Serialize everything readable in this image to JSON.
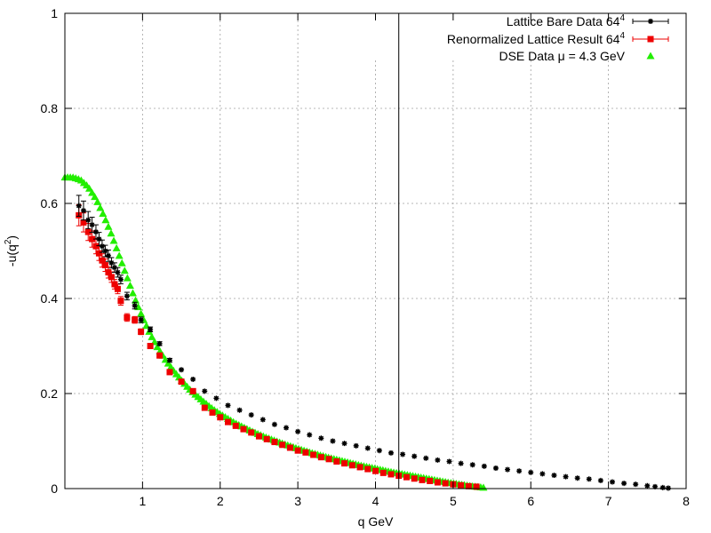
{
  "chart_data": {
    "type": "scatter",
    "title": "",
    "xlabel": "q GeV",
    "ylabel_main": "-u(q",
    "ylabel_sup": "2",
    "ylabel_end": ")",
    "xlim": [
      0,
      8
    ],
    "ylim": [
      0,
      1
    ],
    "x_ticks": [
      1,
      2,
      3,
      4,
      5,
      6,
      7,
      8
    ],
    "x_tick_labels": [
      "1",
      "2",
      "3",
      "4",
      "5",
      "6",
      "7",
      "8"
    ],
    "y_ticks": [
      0,
      0.2,
      0.4,
      0.6,
      0.8,
      1
    ],
    "y_tick_labels": [
      "0",
      "0.2",
      "0.4",
      "0.6",
      "0.8",
      "1"
    ],
    "grid": true,
    "legend_position": "top-right",
    "vertical_line_x": 4.3,
    "series": [
      {
        "name": "Lattice Bare Data 64",
        "name_sup": "4",
        "color": "#000000",
        "marker": "star",
        "x": [
          0.18,
          0.24,
          0.3,
          0.35,
          0.4,
          0.44,
          0.48,
          0.52,
          0.56,
          0.6,
          0.64,
          0.68,
          0.72,
          0.8,
          0.9,
          0.98,
          1.1,
          1.22,
          1.35,
          1.5,
          1.65,
          1.8,
          1.95,
          2.1,
          2.25,
          2.4,
          2.55,
          2.7,
          2.85,
          3.0,
          3.15,
          3.3,
          3.45,
          3.6,
          3.75,
          3.9,
          4.05,
          4.2,
          4.35,
          4.5,
          4.65,
          4.8,
          4.95,
          5.1,
          5.25,
          5.4,
          5.55,
          5.7,
          5.85,
          6.0,
          6.15,
          6.3,
          6.45,
          6.6,
          6.75,
          6.9,
          7.05,
          7.2,
          7.35,
          7.5,
          7.6,
          7.7,
          7.77
        ],
        "y": [
          0.595,
          0.585,
          0.565,
          0.555,
          0.54,
          0.525,
          0.51,
          0.5,
          0.49,
          0.475,
          0.465,
          0.455,
          0.44,
          0.405,
          0.385,
          0.355,
          0.335,
          0.305,
          0.27,
          0.25,
          0.23,
          0.205,
          0.19,
          0.175,
          0.165,
          0.155,
          0.145,
          0.135,
          0.128,
          0.12,
          0.113,
          0.106,
          0.1,
          0.095,
          0.09,
          0.085,
          0.08,
          0.075,
          0.072,
          0.068,
          0.064,
          0.06,
          0.057,
          0.053,
          0.05,
          0.047,
          0.043,
          0.04,
          0.037,
          0.034,
          0.031,
          0.028,
          0.025,
          0.022,
          0.02,
          0.017,
          0.014,
          0.011,
          0.009,
          0.006,
          0.004,
          0.002,
          0.001
        ],
        "err": [
          0.022,
          0.02,
          0.018,
          0.016,
          0.015,
          0.014,
          0.013,
          0.012,
          0.012,
          0.011,
          0.01,
          0.01,
          0.009,
          0.008,
          0.007,
          0.006,
          0.005,
          0.004,
          0.004,
          0.003,
          0.003,
          0.003,
          0.002,
          0.002,
          0.002,
          0.002,
          0.002,
          0.002,
          0.002,
          0.002,
          0.002,
          0.002,
          0.002,
          0.002,
          0.002,
          0.002,
          0.002,
          0.002,
          0.002,
          0.002,
          0.002,
          0.002,
          0.002,
          0.002,
          0.002,
          0.002,
          0.002,
          0.002,
          0.002,
          0.002,
          0.002,
          0.002,
          0.002,
          0.002,
          0.002,
          0.002,
          0.002,
          0.002,
          0.002,
          0.002,
          0.002,
          0.002,
          0.002
        ]
      },
      {
        "name": "Renormalized Lattice Result 64",
        "name_sup": "4",
        "color": "#ee0000",
        "marker": "square",
        "x": [
          0.18,
          0.24,
          0.3,
          0.35,
          0.4,
          0.44,
          0.48,
          0.52,
          0.56,
          0.6,
          0.64,
          0.68,
          0.72,
          0.8,
          0.9,
          0.98,
          1.1,
          1.22,
          1.35,
          1.5,
          1.65,
          1.8,
          1.9,
          2.0,
          2.1,
          2.2,
          2.3,
          2.4,
          2.5,
          2.6,
          2.7,
          2.8,
          2.9,
          3.0,
          3.1,
          3.2,
          3.3,
          3.4,
          3.5,
          3.6,
          3.7,
          3.8,
          3.9,
          4.0,
          4.1,
          4.2,
          4.3,
          4.4,
          4.5,
          4.6,
          4.7,
          4.8,
          4.9,
          5.0,
          5.1,
          5.2,
          5.3
        ],
        "y": [
          0.575,
          0.56,
          0.54,
          0.525,
          0.51,
          0.495,
          0.48,
          0.47,
          0.455,
          0.445,
          0.43,
          0.42,
          0.395,
          0.36,
          0.355,
          0.33,
          0.3,
          0.28,
          0.245,
          0.225,
          0.205,
          0.17,
          0.16,
          0.15,
          0.14,
          0.132,
          0.125,
          0.118,
          0.11,
          0.104,
          0.098,
          0.092,
          0.086,
          0.08,
          0.076,
          0.071,
          0.066,
          0.062,
          0.057,
          0.053,
          0.049,
          0.045,
          0.041,
          0.037,
          0.033,
          0.03,
          0.027,
          0.024,
          0.021,
          0.018,
          0.016,
          0.013,
          0.011,
          0.009,
          0.007,
          0.005,
          0.004
        ],
        "err": [
          0.022,
          0.02,
          0.018,
          0.017,
          0.016,
          0.015,
          0.014,
          0.013,
          0.012,
          0.011,
          0.01,
          0.01,
          0.009,
          0.008,
          0.007,
          0.006,
          0.005,
          0.004,
          0.004,
          0.003,
          0.003,
          0.003,
          0.002,
          0.002,
          0.002,
          0.002,
          0.002,
          0.002,
          0.002,
          0.002,
          0.002,
          0.002,
          0.002,
          0.002,
          0.002,
          0.002,
          0.002,
          0.002,
          0.002,
          0.002,
          0.002,
          0.002,
          0.002,
          0.002,
          0.002,
          0.002,
          0.002,
          0.002,
          0.002,
          0.002,
          0.002,
          0.002,
          0.002,
          0.002,
          0.002,
          0.002,
          0.002
        ]
      },
      {
        "name": "DSE Data μ = 4.3 GeV",
        "name_sup": "",
        "color": "#22ee00",
        "marker": "triangle",
        "curve": [
          [
            0.0,
            0.655
          ],
          [
            0.1,
            0.655
          ],
          [
            0.2,
            0.65
          ],
          [
            0.3,
            0.635
          ],
          [
            0.4,
            0.61
          ],
          [
            0.5,
            0.575
          ],
          [
            0.6,
            0.535
          ],
          [
            0.7,
            0.49
          ],
          [
            0.8,
            0.445
          ],
          [
            0.9,
            0.4
          ],
          [
            1.0,
            0.36
          ],
          [
            1.1,
            0.325
          ],
          [
            1.2,
            0.295
          ],
          [
            1.3,
            0.27
          ],
          [
            1.4,
            0.248
          ],
          [
            1.5,
            0.228
          ],
          [
            1.6,
            0.21
          ],
          [
            1.7,
            0.195
          ],
          [
            1.8,
            0.181
          ],
          [
            1.9,
            0.168
          ],
          [
            2.0,
            0.157
          ],
          [
            2.2,
            0.137
          ],
          [
            2.4,
            0.121
          ],
          [
            2.6,
            0.107
          ],
          [
            2.8,
            0.095
          ],
          [
            3.0,
            0.084
          ],
          [
            3.2,
            0.074
          ],
          [
            3.4,
            0.065
          ],
          [
            3.6,
            0.057
          ],
          [
            3.8,
            0.049
          ],
          [
            4.0,
            0.042
          ],
          [
            4.2,
            0.035
          ],
          [
            4.4,
            0.029
          ],
          [
            4.6,
            0.023
          ],
          [
            4.8,
            0.017
          ],
          [
            5.0,
            0.011
          ],
          [
            5.2,
            0.006
          ],
          [
            5.4,
            0.002
          ]
        ]
      }
    ]
  }
}
